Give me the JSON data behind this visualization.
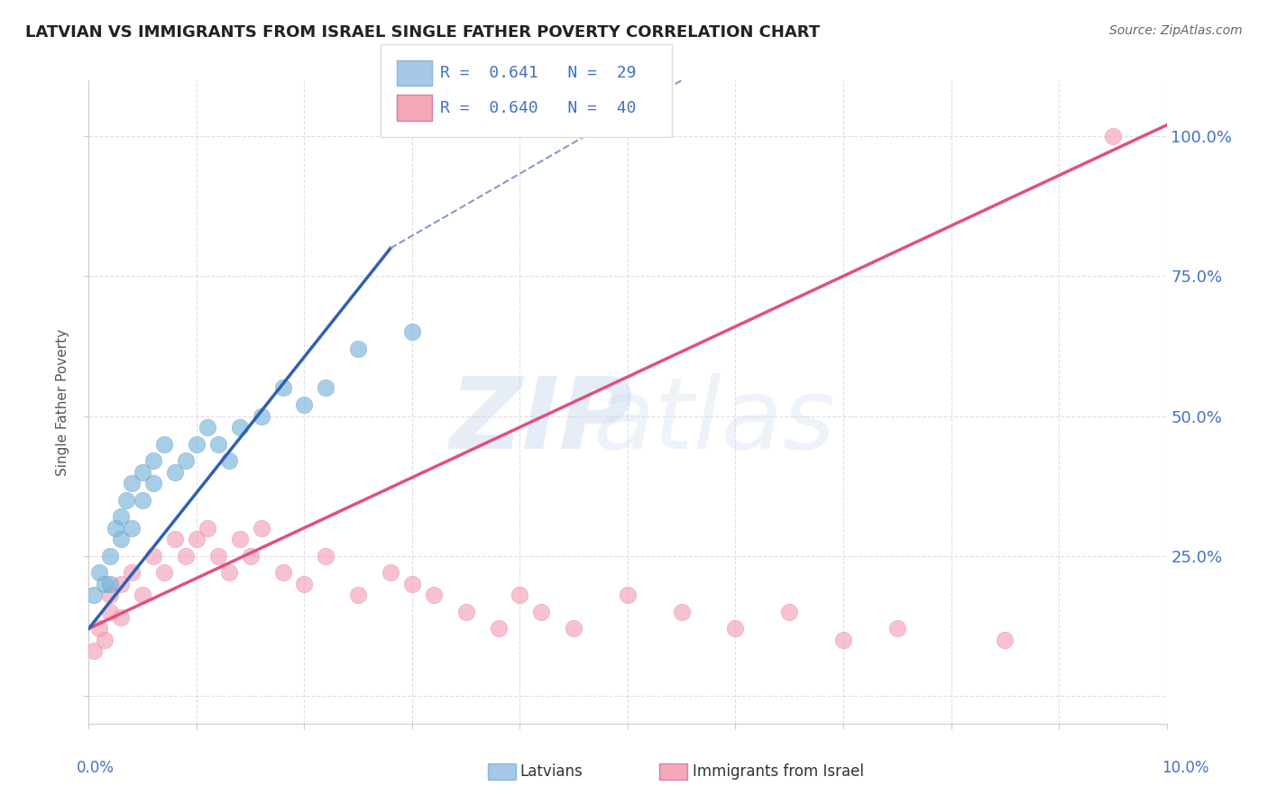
{
  "title": "LATVIAN VS IMMIGRANTS FROM ISRAEL SINGLE FATHER POVERTY CORRELATION CHART",
  "source": "Source: ZipAtlas.com",
  "ylabel": "Single Father Poverty",
  "ytick_labels": [
    "",
    "25.0%",
    "50.0%",
    "75.0%",
    "100.0%"
  ],
  "ytick_vals": [
    0.0,
    0.25,
    0.5,
    0.75,
    1.0
  ],
  "legend_entries": [
    {
      "label": "Latvians",
      "R": "0.641",
      "N": "29",
      "color": "#a8c8e8"
    },
    {
      "label": "Immigrants from Israel",
      "R": "0.640",
      "N": "40",
      "color": "#f4a8b8"
    }
  ],
  "latvian_scatter": {
    "x": [
      0.0005,
      0.001,
      0.0015,
      0.002,
      0.002,
      0.0025,
      0.003,
      0.003,
      0.0035,
      0.004,
      0.004,
      0.005,
      0.005,
      0.006,
      0.006,
      0.007,
      0.008,
      0.009,
      0.01,
      0.011,
      0.012,
      0.013,
      0.014,
      0.016,
      0.018,
      0.02,
      0.022,
      0.025,
      0.03
    ],
    "y": [
      0.18,
      0.22,
      0.2,
      0.25,
      0.2,
      0.3,
      0.28,
      0.32,
      0.35,
      0.3,
      0.38,
      0.35,
      0.4,
      0.38,
      0.42,
      0.45,
      0.4,
      0.42,
      0.45,
      0.48,
      0.45,
      0.42,
      0.48,
      0.5,
      0.55,
      0.52,
      0.55,
      0.62,
      0.65
    ],
    "color": "#7ab3d9",
    "edge_color": "#5a93b9",
    "alpha": 0.65,
    "size": 180
  },
  "israel_scatter": {
    "x": [
      0.0005,
      0.001,
      0.0015,
      0.002,
      0.002,
      0.003,
      0.003,
      0.004,
      0.005,
      0.006,
      0.007,
      0.008,
      0.009,
      0.01,
      0.011,
      0.012,
      0.013,
      0.014,
      0.015,
      0.016,
      0.018,
      0.02,
      0.022,
      0.025,
      0.028,
      0.03,
      0.032,
      0.035,
      0.038,
      0.04,
      0.042,
      0.045,
      0.05,
      0.055,
      0.06,
      0.065,
      0.07,
      0.075,
      0.085,
      0.095
    ],
    "y": [
      0.08,
      0.12,
      0.1,
      0.15,
      0.18,
      0.14,
      0.2,
      0.22,
      0.18,
      0.25,
      0.22,
      0.28,
      0.25,
      0.28,
      0.3,
      0.25,
      0.22,
      0.28,
      0.25,
      0.3,
      0.22,
      0.2,
      0.25,
      0.18,
      0.22,
      0.2,
      0.18,
      0.15,
      0.12,
      0.18,
      0.15,
      0.12,
      0.18,
      0.15,
      0.12,
      0.15,
      0.1,
      0.12,
      0.1,
      1.0
    ],
    "color": "#f4a0b8",
    "edge_color": "#d48098",
    "alpha": 0.65,
    "size": 180
  },
  "latvian_line_solid": {
    "x": [
      0.0,
      0.028
    ],
    "y": [
      0.12,
      0.8
    ],
    "color": "#3060b0",
    "linewidth": 2.5
  },
  "latvian_line_dashed": {
    "x": [
      0.028,
      0.055
    ],
    "y": [
      0.8,
      1.1
    ],
    "color": "#8899cc",
    "linewidth": 1.5,
    "linestyle": "--"
  },
  "israel_line": {
    "x": [
      0.0,
      0.1
    ],
    "y": [
      0.12,
      1.02
    ],
    "color": "#e05080",
    "linewidth": 2.5
  },
  "background_color": "#ffffff",
  "grid_color": "#cccccc",
  "title_color": "#222222",
  "axis_color": "#4472C4",
  "xlim": [
    0.0,
    0.1
  ],
  "ylim": [
    -0.05,
    1.1
  ]
}
